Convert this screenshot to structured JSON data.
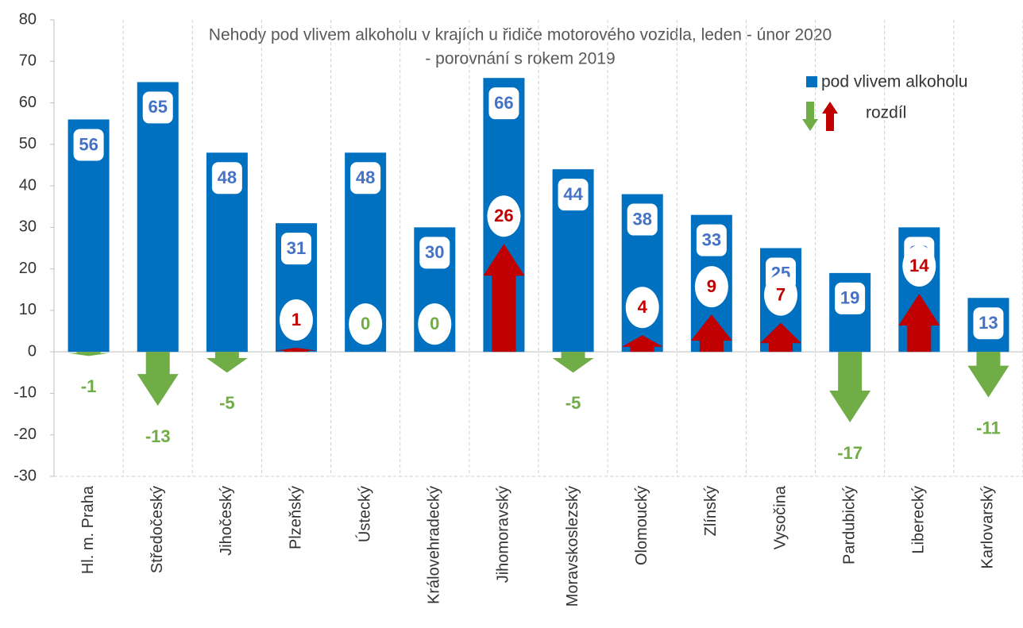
{
  "chart_data": {
    "type": "bar",
    "title": [
      "Nehody pod vlivem alkoholu v krajích u řidiče motorového vozidla, leden - únor 2020",
      "- porovnání s rokem 2019"
    ],
    "categories": [
      "Hl. m. Praha",
      "Středočeský",
      "Jihočeský",
      "Plzeňský",
      "Ústecký",
      "Královehradecký",
      "Jihomoravský",
      "Moravskoslezský",
      "Olomoucký",
      "Zlínský",
      "Vysočina",
      "Pardubický",
      "Liberecký",
      "Karlovarský"
    ],
    "series": [
      {
        "name": "pod vlivem alkoholu",
        "color": "#0070c0",
        "values": [
          56,
          65,
          48,
          31,
          48,
          30,
          66,
          44,
          38,
          33,
          25,
          19,
          30,
          13
        ]
      },
      {
        "name": "rozdíl",
        "color": [
          "#70ad47",
          "#c00000"
        ],
        "values": [
          -1,
          -13,
          -5,
          1,
          0,
          0,
          26,
          -5,
          4,
          9,
          7,
          -17,
          14,
          -11
        ]
      }
    ],
    "ylim": [
      -30,
      80
    ],
    "yticks": [
      -30,
      -20,
      -10,
      0,
      10,
      20,
      30,
      40,
      50,
      60,
      70,
      80
    ]
  }
}
